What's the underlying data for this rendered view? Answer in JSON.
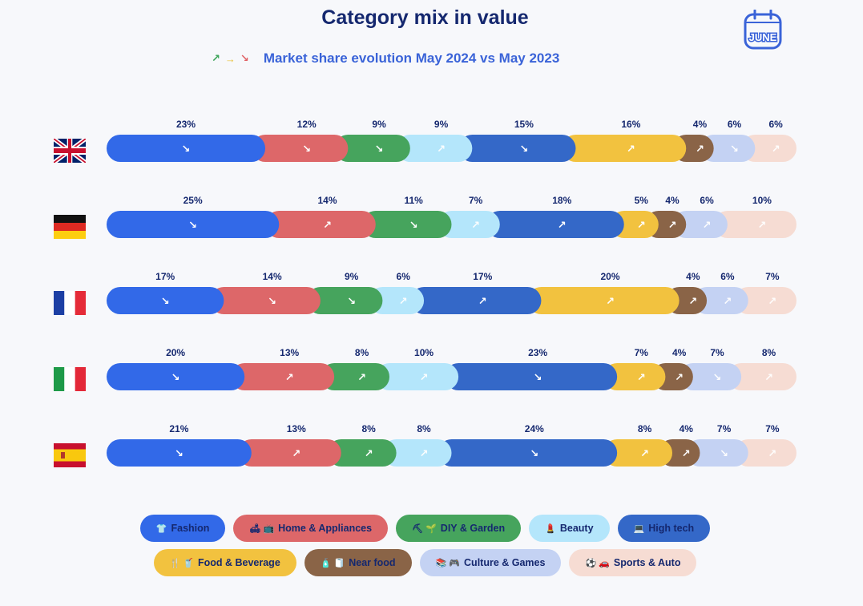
{
  "title": "Category mix in value",
  "calendar_label": "JUNE",
  "subtitle": {
    "text": "Market share evolution May 2024 vs May 2023",
    "arrows": [
      {
        "glyph": "↗",
        "color": "#3aa457"
      },
      {
        "glyph": "→",
        "color": "#e8c23c"
      },
      {
        "glyph": "↘",
        "color": "#e06266"
      }
    ]
  },
  "colors": {
    "fashion": "#3269e8",
    "home": "#dd6769",
    "diy": "#46a45d",
    "beauty": "#b4e6fb",
    "hightech": "#3468c8",
    "food": "#f2c23f",
    "nearfood": "#8a6447",
    "culture": "#c4d2f3",
    "sports": "#f6dcd3",
    "label": "#15286f"
  },
  "chart_data": {
    "type": "bar",
    "stacked": true,
    "orientation": "horizontal",
    "title": "Category mix in value",
    "subtitle": "Market share evolution May 2024 vs May 2023",
    "unit": "%",
    "countries": [
      "United Kingdom",
      "Germany",
      "France",
      "Italy",
      "Spain"
    ],
    "categories": [
      "Fashion",
      "Home & Appliances",
      "DIY & Garden",
      "Beauty",
      "High tech",
      "Food & Beverage",
      "Near food",
      "Culture & Games",
      "Sports & Auto"
    ],
    "series": [
      {
        "country": "United Kingdom",
        "values": [
          23,
          12,
          9,
          9,
          15,
          16,
          4,
          6,
          6
        ],
        "trend": [
          "down",
          "down",
          "down",
          "up",
          "down",
          "up",
          "up",
          "down",
          "up"
        ]
      },
      {
        "country": "Germany",
        "values": [
          25,
          14,
          11,
          7,
          18,
          5,
          4,
          6,
          10
        ],
        "trend": [
          "down",
          "up",
          "down",
          "up",
          "up",
          "up",
          "up",
          "up",
          "up"
        ]
      },
      {
        "country": "France",
        "values": [
          17,
          14,
          9,
          6,
          17,
          20,
          4,
          6,
          7
        ],
        "trend": [
          "down",
          "down",
          "down",
          "up",
          "up",
          "up",
          "up",
          "up",
          "up"
        ]
      },
      {
        "country": "Italy",
        "values": [
          20,
          13,
          8,
          10,
          23,
          7,
          4,
          7,
          8
        ],
        "trend": [
          "down",
          "up",
          "up",
          "up",
          "down",
          "up",
          "up",
          "down",
          "up"
        ]
      },
      {
        "country": "Spain",
        "values": [
          21,
          13,
          8,
          8,
          24,
          8,
          4,
          7,
          7
        ],
        "trend": [
          "down",
          "up",
          "up",
          "up",
          "down",
          "up",
          "up",
          "down",
          "up"
        ]
      }
    ]
  },
  "legend": [
    {
      "label": "Fashion",
      "key": "fashion",
      "icon": "👕"
    },
    {
      "label": "Home & Appliances",
      "key": "home",
      "icon": "🛋 📺"
    },
    {
      "label": "DIY & Garden",
      "key": "diy",
      "icon": "⛏ 🌱"
    },
    {
      "label": "Beauty",
      "key": "beauty",
      "icon": "💄"
    },
    {
      "label": "High tech",
      "key": "hightech",
      "icon": "💻"
    },
    {
      "label": "Food & Beverage",
      "key": "food",
      "icon": "🍴 🥤"
    },
    {
      "label": "Near food",
      "key": "nearfood",
      "icon": "🧴 🧻"
    },
    {
      "label": "Culture & Games",
      "key": "culture",
      "icon": "📚 🎮"
    },
    {
      "label": "Sports & Auto",
      "key": "sports",
      "icon": "⚽ 🚗"
    }
  ]
}
